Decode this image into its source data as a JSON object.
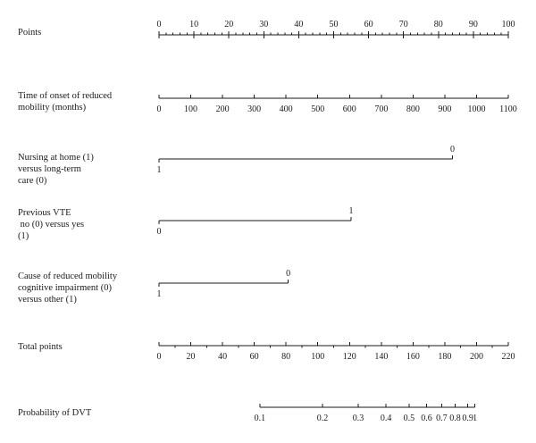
{
  "chart_data": {
    "type": "nomogram",
    "rows": [
      {
        "key": "points",
        "label": [
          "Points"
        ],
        "kind": "axis",
        "range": [
          0,
          100
        ],
        "ticks": [
          0,
          10,
          20,
          30,
          40,
          50,
          60,
          70,
          80,
          90,
          100
        ],
        "labels": [
          "0",
          "10",
          "20",
          "30",
          "40",
          "50",
          "60",
          "70",
          "80",
          "90",
          "100"
        ],
        "minor_step": 2,
        "label_position": "above"
      },
      {
        "key": "onset",
        "label": [
          "Time of onset of reduced",
          "mobility (months)"
        ],
        "kind": "axis",
        "range": [
          0,
          1100
        ],
        "points_range": [
          0,
          100
        ],
        "ticks": [
          0,
          100,
          200,
          300,
          400,
          500,
          600,
          700,
          800,
          900,
          1000,
          1100
        ],
        "labels": [
          "0",
          "100",
          "200",
          "300",
          "400",
          "500",
          "600",
          "700",
          "800",
          "900",
          "1000",
          "1100"
        ],
        "label_position": "below"
      },
      {
        "key": "nursing",
        "label": [
          "Nursing at home (1)",
          "versus long-term",
          "care (0)"
        ],
        "kind": "binary",
        "points": [
          0,
          84
        ],
        "levels": [
          "1",
          "0"
        ]
      },
      {
        "key": "vte",
        "label": [
          "Previous VTE",
          " no (0) versus yes",
          "(1)"
        ],
        "kind": "binary",
        "points": [
          0,
          55
        ],
        "levels": [
          "0",
          "1"
        ]
      },
      {
        "key": "cause",
        "label": [
          "Cause of reduced mobility",
          "cognitive impairment (0)",
          "versus other (1)"
        ],
        "kind": "binary",
        "points": [
          0,
          37
        ],
        "levels": [
          "1",
          "0"
        ]
      },
      {
        "key": "total",
        "label": [
          "Total points"
        ],
        "kind": "axis",
        "range": [
          0,
          220
        ],
        "ticks": [
          0,
          20,
          40,
          60,
          80,
          100,
          120,
          140,
          160,
          180,
          200,
          220
        ],
        "labels": [
          "0",
          "20",
          "40",
          "60",
          "80",
          "100",
          "120",
          "140",
          "160",
          "180",
          "200",
          "220"
        ],
        "minor_step": 10,
        "label_position": "below"
      },
      {
        "key": "prob",
        "label": [
          "Probability of DVT"
        ],
        "kind": "probability",
        "total_points_at": [
          [
            0.1,
            63.5
          ],
          [
            0.2,
            103
          ],
          [
            0.3,
            125.5
          ],
          [
            0.4,
            143
          ],
          [
            0.5,
            157.5
          ],
          [
            0.6,
            168.5
          ],
          [
            0.7,
            178
          ],
          [
            0.8,
            186.5
          ],
          [
            0.9,
            194.5
          ],
          [
            1,
            199
          ]
        ],
        "labels": [
          "0.1",
          "0.2",
          "0.3",
          "0.4",
          "0.5",
          "0.6",
          "0.7",
          "0.8",
          "0.9",
          "1"
        ],
        "label_position": "below"
      }
    ]
  }
}
